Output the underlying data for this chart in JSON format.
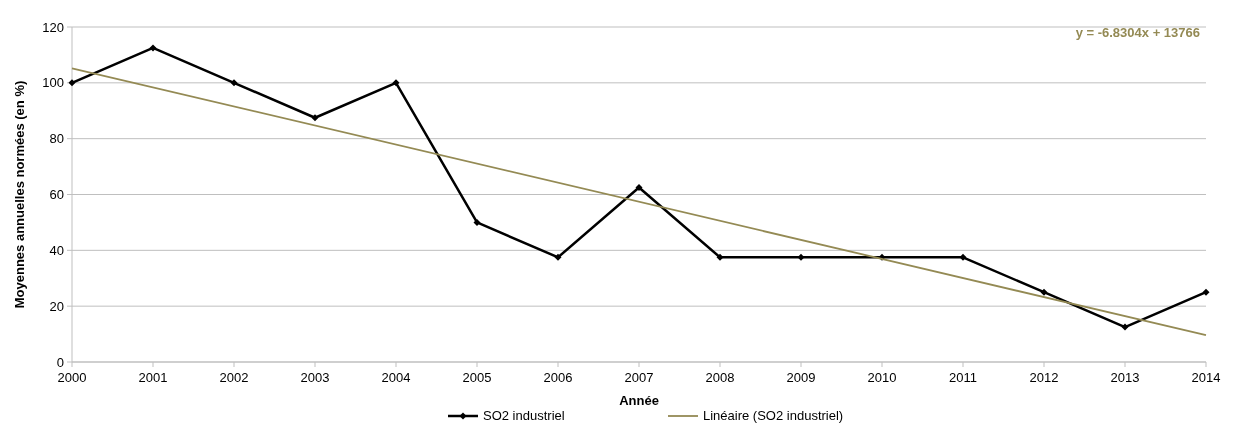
{
  "chart_data": {
    "type": "line",
    "xlabel": "Année",
    "ylabel": "Moyennes annuelles normées (en %)",
    "x": [
      2000,
      2001,
      2002,
      2003,
      2004,
      2005,
      2006,
      2007,
      2008,
      2009,
      2010,
      2011,
      2012,
      2013,
      2014
    ],
    "series": [
      {
        "name": "SO2 industriel",
        "color": "#000000",
        "marker": "diamond",
        "values": [
          100,
          112.5,
          100,
          87.5,
          100,
          50,
          37.5,
          62.5,
          37.5,
          37.5,
          37.5,
          37.5,
          25,
          12.5,
          25
        ]
      },
      {
        "name": "Linéaire (SO2 industriel)",
        "color": "#948a54",
        "marker": "none",
        "x": [
          2000,
          2014
        ],
        "values": [
          105.2,
          9.6
        ]
      }
    ],
    "xlim": [
      2000,
      2014
    ],
    "xticks": [
      2000,
      2001,
      2002,
      2003,
      2004,
      2005,
      2006,
      2007,
      2008,
      2009,
      2010,
      2011,
      2012,
      2013,
      2014
    ],
    "ylim": [
      0,
      120
    ],
    "yticks": [
      0,
      20,
      40,
      60,
      80,
      100,
      120
    ],
    "grid": "y",
    "legend": "bottom",
    "annotations": [
      "y = -6.8304x + 13766"
    ]
  }
}
